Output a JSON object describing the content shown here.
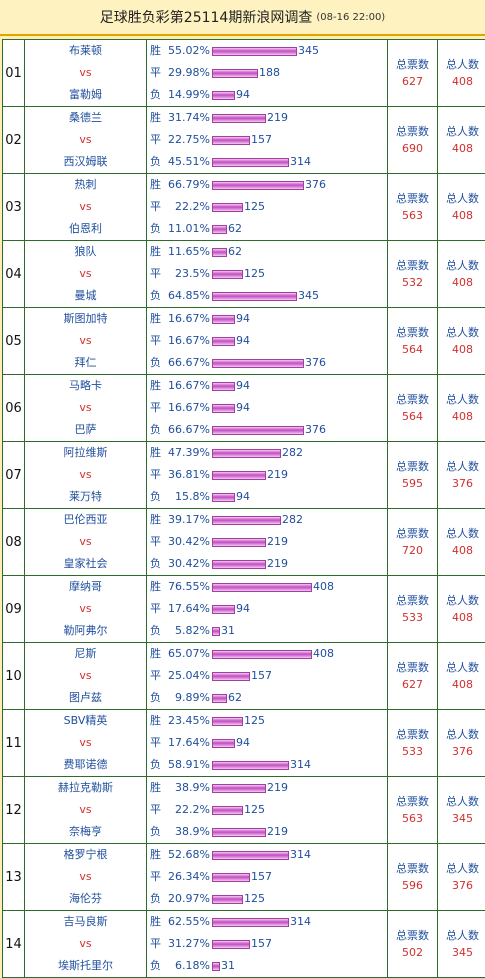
{
  "header": {
    "title": "足球胜负彩第25114期新浪网调查",
    "subtitle": "(08-16 22:00)"
  },
  "labels": {
    "win": "胜",
    "draw": "平",
    "loss": "负",
    "vs": "vs",
    "total_tickets": "总票数",
    "total_people": "总人数"
  },
  "matches": [
    {
      "no": "01",
      "home": "布莱顿",
      "away": "富勒姆",
      "win": {
        "pct": "55.02%",
        "count": 345
      },
      "draw": {
        "pct": "29.98%",
        "count": 188
      },
      "loss": {
        "pct": "14.99%",
        "count": 94
      },
      "tickets": "627",
      "people": "408"
    },
    {
      "no": "02",
      "home": "桑德兰",
      "away": "西汉姆联",
      "win": {
        "pct": "31.74%",
        "count": 219
      },
      "draw": {
        "pct": "22.75%",
        "count": 157
      },
      "loss": {
        "pct": "45.51%",
        "count": 314
      },
      "tickets": "690",
      "people": "408"
    },
    {
      "no": "03",
      "home": "热刺",
      "away": "伯恩利",
      "win": {
        "pct": "66.79%",
        "count": 376
      },
      "draw": {
        "pct": "22.2%",
        "count": 125
      },
      "loss": {
        "pct": "11.01%",
        "count": 62
      },
      "tickets": "563",
      "people": "408"
    },
    {
      "no": "04",
      "home": "狼队",
      "away": "曼城",
      "win": {
        "pct": "11.65%",
        "count": 62
      },
      "draw": {
        "pct": "23.5%",
        "count": 125
      },
      "loss": {
        "pct": "64.85%",
        "count": 345
      },
      "tickets": "532",
      "people": "408"
    },
    {
      "no": "05",
      "home": "斯图加特",
      "away": "拜仁",
      "win": {
        "pct": "16.67%",
        "count": 94
      },
      "draw": {
        "pct": "16.67%",
        "count": 94
      },
      "loss": {
        "pct": "66.67%",
        "count": 376
      },
      "tickets": "564",
      "people": "408"
    },
    {
      "no": "06",
      "home": "马略卡",
      "away": "巴萨",
      "win": {
        "pct": "16.67%",
        "count": 94
      },
      "draw": {
        "pct": "16.67%",
        "count": 94
      },
      "loss": {
        "pct": "66.67%",
        "count": 376
      },
      "tickets": "564",
      "people": "408"
    },
    {
      "no": "07",
      "home": "阿拉维斯",
      "away": "莱万特",
      "win": {
        "pct": "47.39%",
        "count": 282
      },
      "draw": {
        "pct": "36.81%",
        "count": 219
      },
      "loss": {
        "pct": "15.8%",
        "count": 94
      },
      "tickets": "595",
      "people": "376"
    },
    {
      "no": "08",
      "home": "巴伦西亚",
      "away": "皇家社会",
      "win": {
        "pct": "39.17%",
        "count": 282
      },
      "draw": {
        "pct": "30.42%",
        "count": 219
      },
      "loss": {
        "pct": "30.42%",
        "count": 219
      },
      "tickets": "720",
      "people": "408"
    },
    {
      "no": "09",
      "home": "摩纳哥",
      "away": "勒阿弗尔",
      "win": {
        "pct": "76.55%",
        "count": 408
      },
      "draw": {
        "pct": "17.64%",
        "count": 94
      },
      "loss": {
        "pct": "5.82%",
        "count": 31
      },
      "tickets": "533",
      "people": "408"
    },
    {
      "no": "10",
      "home": "尼斯",
      "away": "图卢兹",
      "win": {
        "pct": "65.07%",
        "count": 408
      },
      "draw": {
        "pct": "25.04%",
        "count": 157
      },
      "loss": {
        "pct": "9.89%",
        "count": 62
      },
      "tickets": "627",
      "people": "408"
    },
    {
      "no": "11",
      "home": "SBV精英",
      "away": "费耶诺德",
      "win": {
        "pct": "23.45%",
        "count": 125
      },
      "draw": {
        "pct": "17.64%",
        "count": 94
      },
      "loss": {
        "pct": "58.91%",
        "count": 314
      },
      "tickets": "533",
      "people": "376"
    },
    {
      "no": "12",
      "home": "赫拉克勒斯",
      "away": "奈梅亨",
      "win": {
        "pct": "38.9%",
        "count": 219
      },
      "draw": {
        "pct": "22.2%",
        "count": 125
      },
      "loss": {
        "pct": "38.9%",
        "count": 219
      },
      "tickets": "563",
      "people": "345"
    },
    {
      "no": "13",
      "home": "格罗宁根",
      "away": "海伦芬",
      "win": {
        "pct": "52.68%",
        "count": 314
      },
      "draw": {
        "pct": "26.34%",
        "count": 157
      },
      "loss": {
        "pct": "20.97%",
        "count": 125
      },
      "tickets": "596",
      "people": "376"
    },
    {
      "no": "14",
      "home": "吉马良斯",
      "away": "埃斯托里尔",
      "win": {
        "pct": "62.55%",
        "count": 314
      },
      "draw": {
        "pct": "31.27%",
        "count": 157
      },
      "loss": {
        "pct": "6.18%",
        "count": 31
      },
      "tickets": "502",
      "people": "345"
    }
  ]
}
